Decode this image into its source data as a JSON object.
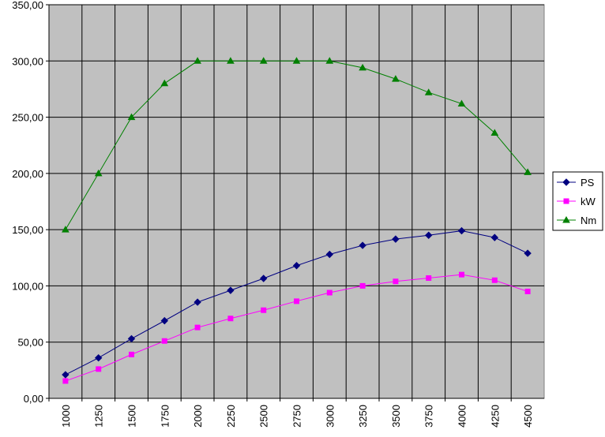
{
  "chart_data": {
    "type": "line",
    "categories": [
      "1000",
      "1250",
      "1500",
      "1750",
      "2000",
      "2250",
      "2500",
      "2750",
      "3000",
      "3250",
      "3500",
      "3750",
      "4000",
      "4250",
      "4500"
    ],
    "series": [
      {
        "name": "PS",
        "color": "#000080",
        "marker": "diamond",
        "values": [
          21,
          36,
          53,
          69,
          85.5,
          96,
          106.6,
          118,
          128,
          136,
          141.6,
          145,
          149,
          143,
          129
        ]
      },
      {
        "name": "kW",
        "color": "#ff00ff",
        "marker": "square",
        "values": [
          15.4,
          26,
          39,
          51,
          63,
          71,
          78.4,
          86.4,
          94,
          100,
          104,
          107,
          110,
          105,
          95
        ]
      },
      {
        "name": "Nm",
        "color": "#008000",
        "marker": "triangle",
        "values": [
          150,
          200,
          250,
          280,
          300,
          300,
          300,
          300,
          300,
          294,
          284,
          272,
          262,
          236,
          201
        ]
      }
    ],
    "ylim": [
      0,
      350
    ],
    "yticks": [
      {
        "value": 0,
        "label": "0,00"
      },
      {
        "value": 50,
        "label": "50,00"
      },
      {
        "value": 100,
        "label": "100,00"
      },
      {
        "value": 150,
        "label": "150,00"
      },
      {
        "value": 200,
        "label": "200,00"
      },
      {
        "value": 250,
        "label": "250,00"
      },
      {
        "value": 300,
        "label": "300,00"
      },
      {
        "value": 350,
        "label": "350,00"
      }
    ],
    "grid": true,
    "legend": "right"
  }
}
